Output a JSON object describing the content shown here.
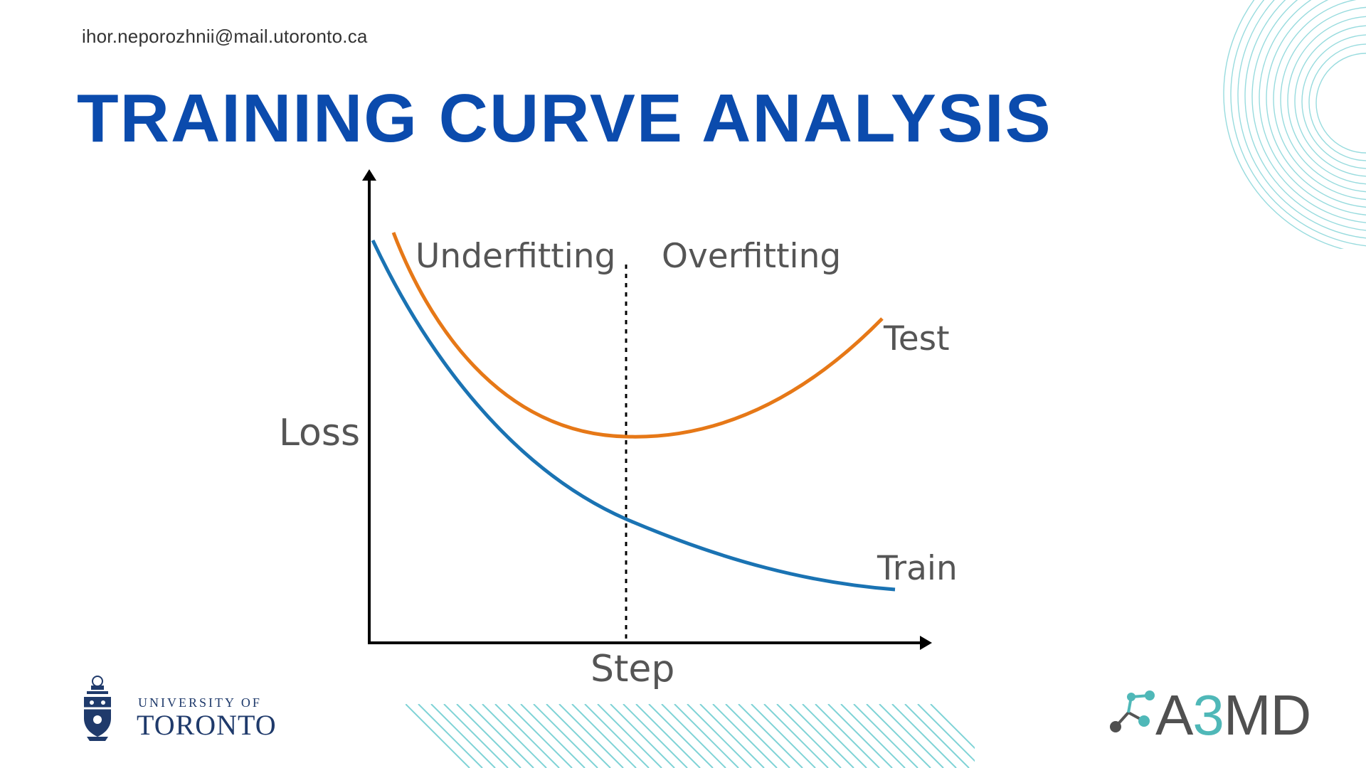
{
  "header": {
    "email": "ihor.neporozhnii@mail.utoronto.ca",
    "title": "TRAINING CURVE ANALYSIS"
  },
  "chart_data": {
    "type": "line",
    "xlabel": "Step",
    "ylabel": "Loss",
    "regions": [
      "Underfitting",
      "Overfitting"
    ],
    "series": [
      {
        "name": "Test",
        "color": "#e67817"
      },
      {
        "name": "Train",
        "color": "#1a73b3"
      }
    ],
    "divider": "dotted vertical line at test-loss minimum",
    "grid": false,
    "axis_ticks": false
  },
  "logos": {
    "university": {
      "line1": "UNIVERSITY OF",
      "line2": "TORONTO",
      "color": "#1f3a6b"
    },
    "lab": {
      "prefix": "A",
      "accent": "3",
      "suffix": "MD",
      "accent_color": "#4fb8b8",
      "icon": "molecule-icon"
    }
  },
  "colors": {
    "title": "#0b4bad",
    "decor": "#7fd3d6"
  }
}
